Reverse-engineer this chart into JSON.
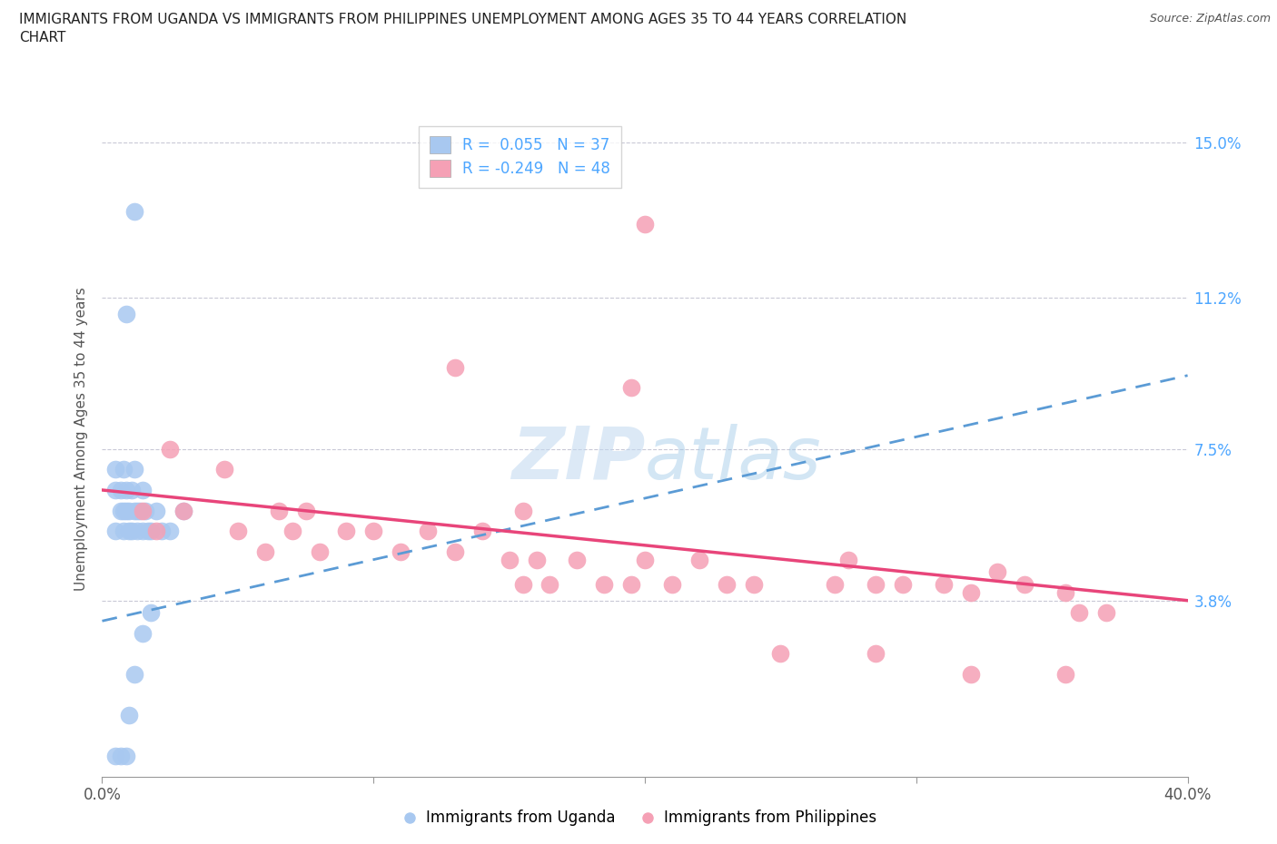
{
  "title_line1": "IMMIGRANTS FROM UGANDA VS IMMIGRANTS FROM PHILIPPINES UNEMPLOYMENT AMONG AGES 35 TO 44 YEARS CORRELATION",
  "title_line2": "CHART",
  "source": "Source: ZipAtlas.com",
  "ylabel": "Unemployment Among Ages 35 to 44 years",
  "watermark": "ZIPatlas",
  "uganda_R": 0.055,
  "uganda_N": 37,
  "philippines_R": -0.249,
  "philippines_N": 48,
  "uganda_color": "#a8c8f0",
  "philippines_color": "#f5a0b5",
  "uganda_line_color": "#5b9bd5",
  "philippines_line_color": "#e8457a",
  "xmin": 0.0,
  "xmax": 0.4,
  "ymin": -0.005,
  "ymax": 0.16,
  "yticks": [
    0.038,
    0.075,
    0.112,
    0.15
  ],
  "ytick_labels": [
    "3.8%",
    "7.5%",
    "11.2%",
    "15.0%"
  ],
  "xticks": [
    0.0,
    0.1,
    0.2,
    0.3,
    0.4
  ],
  "xtick_labels_shown": [
    "0.0%",
    "",
    "",
    "",
    "40.0%"
  ],
  "grid_color": "#bbbbcc",
  "background_color": "#ffffff",
  "uganda_x": [
    0.005,
    0.005,
    0.005,
    0.007,
    0.007,
    0.008,
    0.008,
    0.008,
    0.009,
    0.009,
    0.01,
    0.01,
    0.011,
    0.011,
    0.012,
    0.012,
    0.013,
    0.013,
    0.014,
    0.015,
    0.015,
    0.016,
    0.017,
    0.018,
    0.02,
    0.022,
    0.025,
    0.03,
    0.005,
    0.007,
    0.009,
    0.01,
    0.012,
    0.015,
    0.018,
    0.009,
    0.012
  ],
  "uganda_y": [
    0.055,
    0.065,
    0.07,
    0.06,
    0.065,
    0.055,
    0.06,
    0.07,
    0.06,
    0.065,
    0.06,
    0.055,
    0.055,
    0.065,
    0.06,
    0.07,
    0.06,
    0.055,
    0.06,
    0.055,
    0.065,
    0.06,
    0.055,
    0.055,
    0.06,
    0.055,
    0.055,
    0.06,
    0.0,
    0.0,
    0.0,
    0.01,
    0.02,
    0.03,
    0.035,
    0.108,
    0.133
  ],
  "philippines_x": [
    0.015,
    0.02,
    0.025,
    0.03,
    0.045,
    0.05,
    0.06,
    0.065,
    0.07,
    0.075,
    0.08,
    0.09,
    0.1,
    0.11,
    0.12,
    0.13,
    0.14,
    0.15,
    0.155,
    0.16,
    0.165,
    0.175,
    0.185,
    0.195,
    0.2,
    0.21,
    0.22,
    0.23,
    0.24,
    0.27,
    0.275,
    0.285,
    0.295,
    0.31,
    0.32,
    0.33,
    0.34,
    0.355,
    0.36,
    0.37,
    0.195,
    0.13,
    0.155,
    0.2,
    0.25,
    0.285,
    0.32,
    0.355
  ],
  "philippines_y": [
    0.06,
    0.055,
    0.075,
    0.06,
    0.07,
    0.055,
    0.05,
    0.06,
    0.055,
    0.06,
    0.05,
    0.055,
    0.055,
    0.05,
    0.055,
    0.05,
    0.055,
    0.048,
    0.042,
    0.048,
    0.042,
    0.048,
    0.042,
    0.042,
    0.048,
    0.042,
    0.048,
    0.042,
    0.042,
    0.042,
    0.048,
    0.042,
    0.042,
    0.042,
    0.04,
    0.045,
    0.042,
    0.04,
    0.035,
    0.035,
    0.09,
    0.095,
    0.06,
    0.13,
    0.025,
    0.025,
    0.02,
    0.02
  ],
  "ug_line_x0": 0.0,
  "ug_line_y0": 0.033,
  "ug_line_x1": 0.4,
  "ug_line_y1": 0.093,
  "ph_line_x0": 0.0,
  "ph_line_y0": 0.065,
  "ph_line_x1": 0.4,
  "ph_line_y1": 0.038
}
